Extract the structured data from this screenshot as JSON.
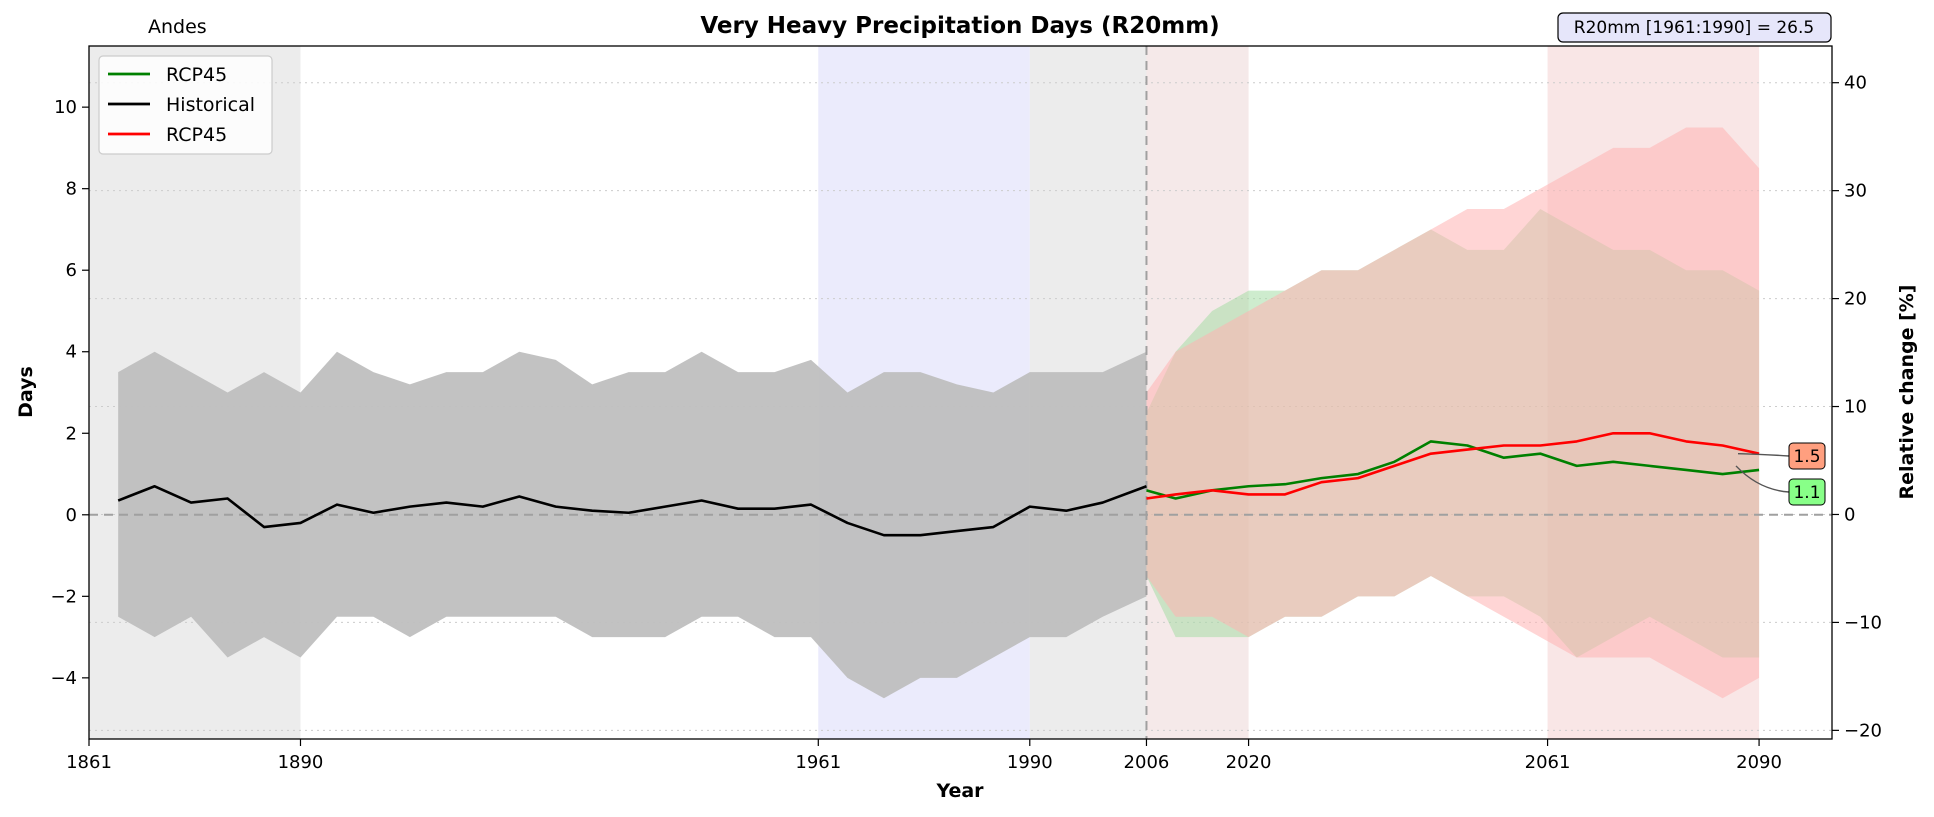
{
  "chart_data": {
    "type": "line",
    "title": "Very Heavy Precipitation Days (R20mm)",
    "region": "Andes",
    "xlabel": "Year",
    "ylabel": "Days",
    "y2label": "Relative change [%]",
    "xlim": [
      1861,
      2100
    ],
    "ylim": [
      -5.5,
      11.5
    ],
    "y2lim": [
      -20.8,
      43.4
    ],
    "xticks": [
      1861,
      1890,
      1961,
      1990,
      2006,
      2020,
      2061,
      2090
    ],
    "yticks": [
      -4,
      -2,
      0,
      2,
      4,
      6,
      8,
      10
    ],
    "y2ticks": [
      -20,
      -10,
      0,
      10,
      20,
      30,
      40
    ],
    "grid": "horizontal dotted",
    "legend_position": "top-left",
    "reference_note": "R20mm [1961:1990] = 26.5",
    "shaded_periods": [
      {
        "start": 1861,
        "end": 1890,
        "color": "#e6e6e6"
      },
      {
        "start": 1961,
        "end": 1990,
        "color": "#e4e4fb"
      },
      {
        "start": 1990,
        "end": 2006,
        "color": "#e6e6e6"
      },
      {
        "start": 2006,
        "end": 2020,
        "color": "#f1e2e2"
      },
      {
        "start": 2061,
        "end": 2090,
        "color": "#f7dede"
      }
    ],
    "vertical_line_x": 2006,
    "end_labels": [
      {
        "text": "1.5",
        "value": 1.5,
        "color": "#ff9f7f"
      },
      {
        "text": "1.1",
        "value": 1.1,
        "color": "#88ff88"
      }
    ],
    "series": [
      {
        "name": "RCP45",
        "color": "#008000",
        "band_color": "#a6dca6",
        "x": [
          2006,
          2010,
          2015,
          2020,
          2025,
          2030,
          2035,
          2040,
          2045,
          2050,
          2055,
          2060,
          2065,
          2070,
          2075,
          2080,
          2085,
          2090
        ],
        "y": [
          0.6,
          0.4,
          0.6,
          0.7,
          0.75,
          0.9,
          1.0,
          1.3,
          1.8,
          1.7,
          1.4,
          1.5,
          1.2,
          1.3,
          1.2,
          1.1,
          1.0,
          1.1
        ],
        "band_upper": [
          2.5,
          4.0,
          5.0,
          5.5,
          5.5,
          6.0,
          6.0,
          6.5,
          7.0,
          6.5,
          6.5,
          7.5,
          7.0,
          6.5,
          6.5,
          6.0,
          6.0,
          5.5
        ],
        "band_lower": [
          -1.5,
          -3.0,
          -3.0,
          -3.0,
          -2.5,
          -2.5,
          -2.0,
          -2.0,
          -1.5,
          -2.0,
          -2.0,
          -2.5,
          -3.5,
          -3.0,
          -2.5,
          -3.0,
          -3.5,
          -3.5
        ]
      },
      {
        "name": "Historical",
        "color": "#000000",
        "band_color": "#bfbfbf",
        "x": [
          1865,
          1870,
          1875,
          1880,
          1885,
          1890,
          1895,
          1900,
          1905,
          1910,
          1915,
          1920,
          1925,
          1930,
          1935,
          1940,
          1945,
          1950,
          1955,
          1960,
          1965,
          1970,
          1975,
          1980,
          1985,
          1990,
          1995,
          2000,
          2006
        ],
        "y": [
          0.35,
          0.7,
          0.3,
          0.4,
          -0.3,
          -0.2,
          0.25,
          0.05,
          0.2,
          0.3,
          0.2,
          0.45,
          0.2,
          0.1,
          0.05,
          0.2,
          0.35,
          0.15,
          0.15,
          0.25,
          -0.2,
          -0.5,
          -0.5,
          -0.4,
          -0.3,
          0.2,
          0.1,
          0.3,
          0.7
        ],
        "band_upper": [
          3.5,
          4.0,
          3.5,
          3.0,
          3.5,
          3.0,
          4.0,
          3.5,
          3.2,
          3.5,
          3.5,
          4.0,
          3.8,
          3.2,
          3.5,
          3.5,
          4.0,
          3.5,
          3.5,
          3.8,
          3.0,
          3.5,
          3.5,
          3.2,
          3.0,
          3.5,
          3.5,
          3.5,
          4.0
        ],
        "band_lower": [
          -2.5,
          -3.0,
          -2.5,
          -3.5,
          -3.0,
          -3.5,
          -2.5,
          -2.5,
          -3.0,
          -2.5,
          -2.5,
          -2.5,
          -2.5,
          -3.0,
          -3.0,
          -3.0,
          -2.5,
          -2.5,
          -3.0,
          -3.0,
          -4.0,
          -4.5,
          -4.0,
          -4.0,
          -3.5,
          -3.0,
          -3.0,
          -2.5,
          -2.0
        ]
      },
      {
        "name": "RCP45",
        "color": "#ff0000",
        "band_color": "#ffb3b3",
        "x": [
          2006,
          2010,
          2015,
          2020,
          2025,
          2030,
          2035,
          2040,
          2045,
          2050,
          2055,
          2060,
          2065,
          2070,
          2075,
          2080,
          2085,
          2090
        ],
        "y": [
          0.4,
          0.5,
          0.6,
          0.5,
          0.5,
          0.8,
          0.9,
          1.2,
          1.5,
          1.6,
          1.7,
          1.7,
          1.8,
          2.0,
          2.0,
          1.8,
          1.7,
          1.5
        ],
        "band_upper": [
          3.0,
          4.0,
          4.5,
          5.0,
          5.5,
          6.0,
          6.0,
          6.5,
          7.0,
          7.5,
          7.5,
          8.0,
          8.5,
          9.0,
          9.0,
          9.5,
          9.5,
          8.5
        ],
        "band_lower": [
          -1.5,
          -2.5,
          -2.5,
          -3.0,
          -2.5,
          -2.5,
          -2.0,
          -2.0,
          -1.5,
          -2.0,
          -2.5,
          -3.0,
          -3.5,
          -3.5,
          -3.5,
          -4.0,
          -4.5,
          -4.0
        ]
      }
    ]
  }
}
